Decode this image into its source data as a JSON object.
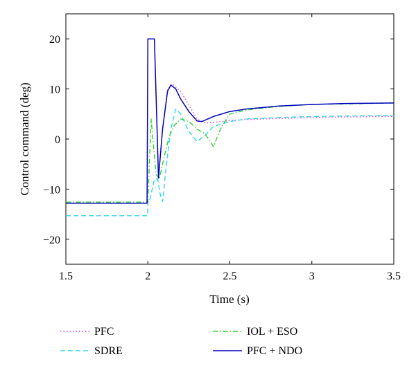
{
  "chart_data": {
    "type": "line",
    "title": "",
    "xlabel": "Time (s)",
    "ylabel": "Control command (deg)",
    "xlim": [
      1.5,
      3.5
    ],
    "ylim": [
      -25,
      25
    ],
    "xticks": [
      1.5,
      2,
      2.5,
      3,
      3.5
    ],
    "xtick_labels": [
      "1.5",
      "2",
      "2.5",
      "3",
      "3.5"
    ],
    "yticks": [
      -20,
      -10,
      0,
      10,
      20
    ],
    "ytick_labels": [
      "−20",
      "−10",
      "0",
      "10",
      "20"
    ],
    "grid": false,
    "legend_position": "below",
    "series": [
      {
        "name": "PFC",
        "color": "#e040e0",
        "dash": "dotted",
        "x": [
          1.5,
          1.995,
          2.0,
          2.005,
          2.04,
          2.065,
          2.09,
          2.12,
          2.15,
          2.2,
          2.25,
          2.3,
          2.35,
          2.4,
          2.5,
          2.6,
          2.8,
          3.0,
          3.2,
          3.5
        ],
        "y": [
          -12.8,
          -12.8,
          20,
          20,
          20,
          -7.2,
          2.0,
          9.8,
          11.0,
          9.5,
          6.8,
          4.0,
          3.2,
          3.3,
          3.7,
          3.9,
          4.1,
          4.3,
          4.4,
          4.5
        ]
      },
      {
        "name": "SDRE",
        "color": "#30d8e8",
        "dash": "dashed",
        "x": [
          1.5,
          1.998,
          2.0,
          2.01,
          2.04,
          2.06,
          2.075,
          2.09,
          2.11,
          2.14,
          2.17,
          2.2,
          2.25,
          2.3,
          2.35,
          2.4,
          2.5,
          2.6,
          2.8,
          3.0,
          3.2,
          3.5
        ],
        "y": [
          -15.3,
          -15.3,
          -12.5,
          -12.5,
          -8.0,
          -8.0,
          -11.0,
          -12.5,
          -6.0,
          2.0,
          6.0,
          5.0,
          1.5,
          -0.5,
          0.8,
          2.5,
          3.5,
          4.0,
          4.3,
          4.5,
          4.6,
          4.7
        ]
      },
      {
        "name": "IOL + ESO",
        "color": "#30d030",
        "dash": "dashdot",
        "x": [
          1.5,
          1.995,
          2.0,
          2.02,
          2.05,
          2.07,
          2.1,
          2.13,
          2.16,
          2.2,
          2.25,
          2.3,
          2.35,
          2.4,
          2.45,
          2.5,
          2.6,
          2.8,
          3.0,
          3.2,
          3.5
        ],
        "y": [
          -12.6,
          -12.6,
          -12.6,
          4.0,
          -7.0,
          -8.0,
          -3.5,
          0.5,
          2.7,
          4.0,
          3.5,
          2.0,
          1.0,
          -1.5,
          2.5,
          5.0,
          5.8,
          6.5,
          6.9,
          7.0,
          7.2
        ]
      },
      {
        "name": "PFC + NDO",
        "color": "#0000c0",
        "dash": "solid",
        "x": [
          1.5,
          1.995,
          2.0,
          2.005,
          2.04,
          2.065,
          2.09,
          2.12,
          2.14,
          2.17,
          2.2,
          2.25,
          2.3,
          2.33,
          2.4,
          2.5,
          2.6,
          2.8,
          3.0,
          3.2,
          3.5
        ],
        "y": [
          -12.8,
          -12.8,
          20,
          20,
          20,
          -7.8,
          2.0,
          9.5,
          10.8,
          10.0,
          8.0,
          5.5,
          3.6,
          3.5,
          4.5,
          5.5,
          6.0,
          6.6,
          6.9,
          7.1,
          7.2
        ]
      }
    ]
  }
}
